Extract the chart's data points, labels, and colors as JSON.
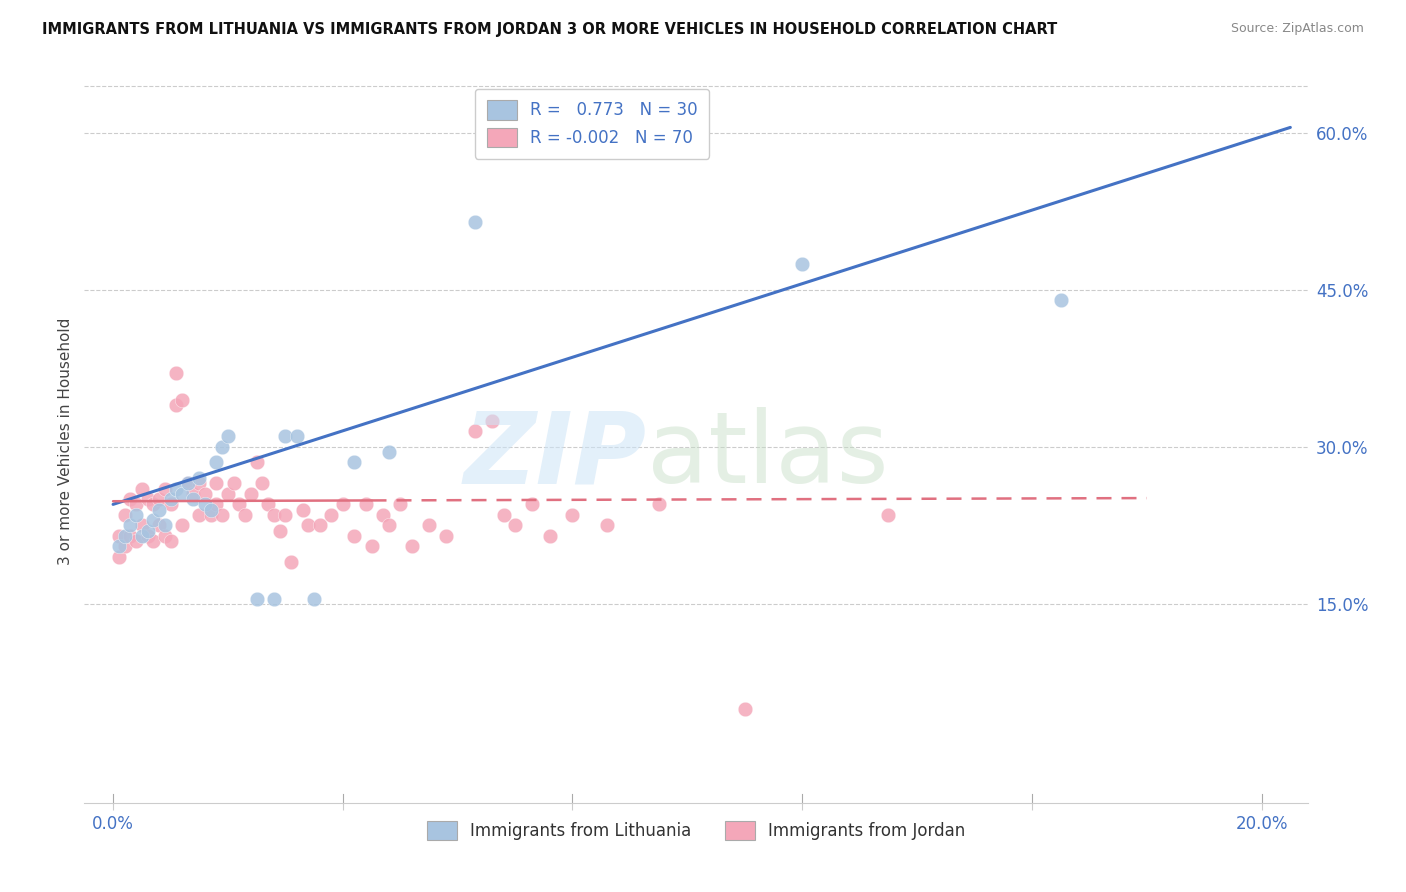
{
  "title": "IMMIGRANTS FROM LITHUANIA VS IMMIGRANTS FROM JORDAN 3 OR MORE VEHICLES IN HOUSEHOLD CORRELATION CHART",
  "source": "Source: ZipAtlas.com",
  "ylabel": "3 or more Vehicles in Household",
  "x_ticks": [
    0.0,
    0.04,
    0.08,
    0.12,
    0.16,
    0.2
  ],
  "x_tick_labels": [
    "0.0%",
    "",
    "",
    "",
    "",
    "20.0%"
  ],
  "y_ticks": [
    0.15,
    0.3,
    0.45,
    0.6
  ],
  "y_tick_labels": [
    "15.0%",
    "30.0%",
    "45.0%",
    "60.0%"
  ],
  "xlim": [
    -0.005,
    0.208
  ],
  "ylim": [
    -0.04,
    0.65
  ],
  "lithuania_R": 0.773,
  "lithuania_N": 30,
  "jordan_R": -0.002,
  "jordan_N": 70,
  "lithuania_color": "#a8c4e0",
  "jordan_color": "#f4a7b9",
  "line_lithuania_color": "#4472c4",
  "line_jordan_color": "#e07080",
  "legend_labels": [
    "Immigrants from Lithuania",
    "Immigrants from Jordan"
  ],
  "lith_line_x0": 0.0,
  "lith_line_y0": 0.245,
  "lith_line_x1": 0.205,
  "lith_line_y1": 0.605,
  "jord_line_x0": 0.0,
  "jord_line_y0": 0.248,
  "jord_line_x1": 0.18,
  "jord_line_y1": 0.251,
  "lithuania_scatter_x": [
    0.001,
    0.002,
    0.003,
    0.004,
    0.005,
    0.006,
    0.007,
    0.008,
    0.009,
    0.01,
    0.011,
    0.012,
    0.013,
    0.014,
    0.015,
    0.016,
    0.017,
    0.018,
    0.019,
    0.02,
    0.025,
    0.028,
    0.03,
    0.032,
    0.035,
    0.042,
    0.048,
    0.063,
    0.12,
    0.165
  ],
  "lithuania_scatter_y": [
    0.205,
    0.215,
    0.225,
    0.235,
    0.215,
    0.22,
    0.23,
    0.24,
    0.225,
    0.25,
    0.26,
    0.255,
    0.265,
    0.25,
    0.27,
    0.245,
    0.24,
    0.285,
    0.3,
    0.31,
    0.155,
    0.155,
    0.31,
    0.31,
    0.155,
    0.285,
    0.295,
    0.515,
    0.475,
    0.44
  ],
  "jordan_scatter_x": [
    0.001,
    0.001,
    0.002,
    0.002,
    0.003,
    0.003,
    0.004,
    0.004,
    0.005,
    0.005,
    0.006,
    0.006,
    0.007,
    0.007,
    0.008,
    0.008,
    0.009,
    0.009,
    0.01,
    0.01,
    0.011,
    0.011,
    0.012,
    0.012,
    0.013,
    0.014,
    0.015,
    0.015,
    0.016,
    0.017,
    0.018,
    0.018,
    0.019,
    0.02,
    0.021,
    0.022,
    0.023,
    0.024,
    0.025,
    0.026,
    0.027,
    0.028,
    0.029,
    0.03,
    0.031,
    0.033,
    0.034,
    0.036,
    0.038,
    0.04,
    0.042,
    0.044,
    0.045,
    0.047,
    0.048,
    0.05,
    0.052,
    0.055,
    0.058,
    0.063,
    0.066,
    0.068,
    0.07,
    0.073,
    0.076,
    0.08,
    0.086,
    0.095,
    0.11,
    0.135
  ],
  "jordan_scatter_y": [
    0.215,
    0.195,
    0.235,
    0.205,
    0.25,
    0.215,
    0.245,
    0.21,
    0.26,
    0.225,
    0.25,
    0.215,
    0.245,
    0.21,
    0.25,
    0.225,
    0.26,
    0.215,
    0.245,
    0.21,
    0.37,
    0.34,
    0.345,
    0.225,
    0.265,
    0.255,
    0.235,
    0.265,
    0.255,
    0.235,
    0.265,
    0.245,
    0.235,
    0.255,
    0.265,
    0.245,
    0.235,
    0.255,
    0.285,
    0.265,
    0.245,
    0.235,
    0.22,
    0.235,
    0.19,
    0.24,
    0.225,
    0.225,
    0.235,
    0.245,
    0.215,
    0.245,
    0.205,
    0.235,
    0.225,
    0.245,
    0.205,
    0.225,
    0.215,
    0.315,
    0.325,
    0.235,
    0.225,
    0.245,
    0.215,
    0.235,
    0.225,
    0.245,
    0.05,
    0.235
  ]
}
